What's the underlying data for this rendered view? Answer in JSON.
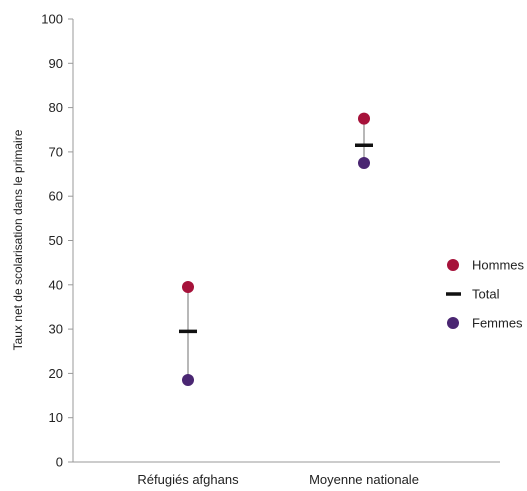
{
  "chart_data": {
    "type": "scatter",
    "ylabel": "Taux net de scolarisation dans le primaire",
    "xlabel": "",
    "ylim": [
      0,
      100
    ],
    "yticks": [
      0,
      10,
      20,
      30,
      40,
      50,
      60,
      70,
      80,
      90,
      100
    ],
    "categories": [
      "Réfugiés afghans",
      "Moyenne nationale"
    ],
    "series": [
      {
        "name": "Hommes",
        "values": [
          39.5,
          77.5
        ],
        "color": "#a6123a",
        "marker": "circle"
      },
      {
        "name": "Total",
        "values": [
          29.5,
          71.5
        ],
        "color": "#111111",
        "marker": "dash"
      },
      {
        "name": "Femmes",
        "values": [
          18.5,
          67.5
        ],
        "color": "#4a2672",
        "marker": "circle"
      }
    ],
    "range_line_color": "#b8b8b8",
    "legend_position": "right"
  }
}
